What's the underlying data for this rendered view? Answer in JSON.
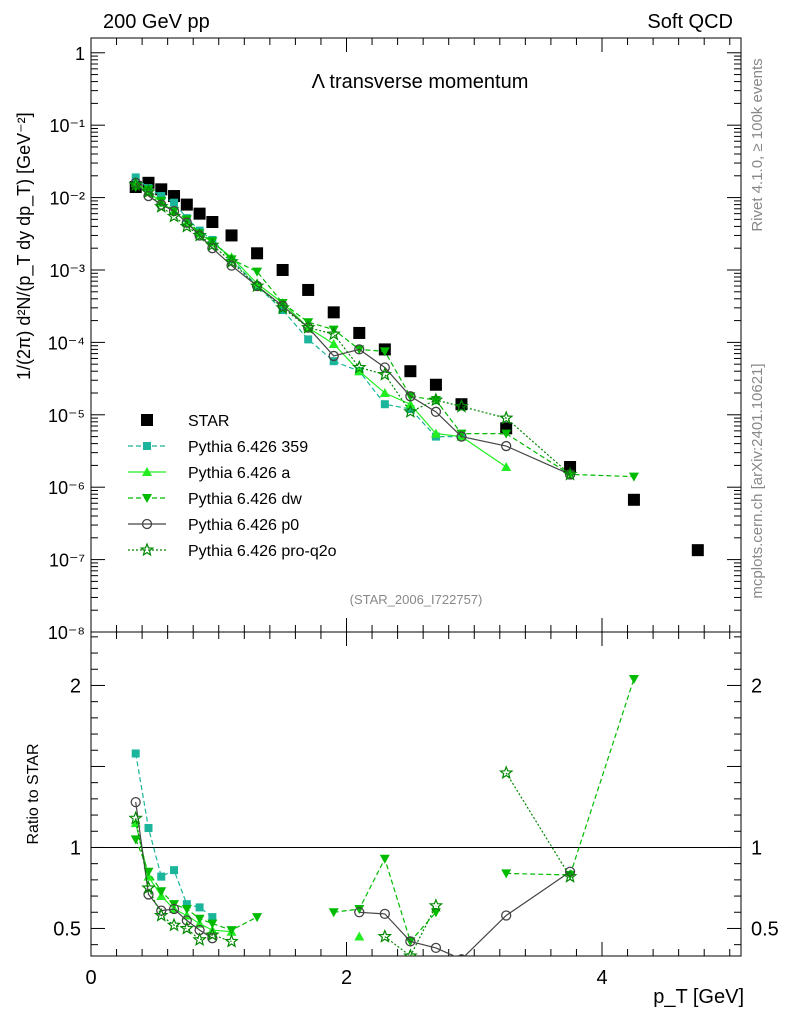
{
  "header": {
    "left": "200 GeV pp",
    "right": "Soft QCD"
  },
  "side_text": {
    "rivet": "Rivet 4.1.0, ≥ 100k events",
    "source": "mcplots.cern.ch [arXiv:2401.10621]"
  },
  "watermark": "(STAR_2006_I722757)",
  "chart_data": {
    "type": "scatter",
    "title": "Λ transverse momentum",
    "xlabel": "p_T [GeV]",
    "ylabel": "1/(2π) d²N/(p_T dy dp_T) [GeV⁻²]",
    "ratio_ylabel": "Ratio to STAR",
    "xlim": [
      0,
      5.15
    ],
    "ylim": [
      1e-08,
      1.6
    ],
    "ratio_ylim": [
      0.33,
      2.33
    ],
    "y_scale": "log",
    "x_ticks": [
      "0",
      "2",
      "4"
    ],
    "y_ticks": [
      "10⁻⁸",
      "10⁻⁷",
      "10⁻⁶",
      "10⁻⁵",
      "10⁻⁴",
      "10⁻³",
      "10⁻²",
      "10⁻¹",
      "1"
    ],
    "ratio_ticks": [
      "0.5",
      "1",
      "2"
    ],
    "legend_position": "center-left",
    "series": [
      {
        "name": "STAR",
        "color": "#000000",
        "marker": "square",
        "line": "none",
        "x": [
          0.35,
          0.45,
          0.55,
          0.65,
          0.75,
          0.85,
          0.95,
          1.1,
          1.3,
          1.5,
          1.7,
          1.9,
          2.1,
          2.3,
          2.5,
          2.7,
          2.9,
          3.25,
          3.75,
          4.25,
          4.75
        ],
        "y": [
          0.014,
          0.016,
          0.013,
          0.0105,
          0.008,
          0.006,
          0.0046,
          0.003,
          0.0017,
          0.001,
          0.00053,
          0.00026,
          0.000135,
          8e-05,
          4e-05,
          2.6e-05,
          1.4e-05,
          6.5e-06,
          1.9e-06,
          6.7e-07,
          1.35e-07
        ]
      },
      {
        "name": "Pythia 6.426 359",
        "color": "#1ab59a",
        "marker": "square-small",
        "line": "dashed",
        "x": [
          0.35,
          0.45,
          0.55,
          0.65,
          0.75,
          0.85,
          0.95,
          1.1,
          1.3,
          1.5,
          1.7,
          1.9,
          2.1,
          2.3,
          2.5,
          2.7,
          2.9
        ],
        "y": [
          0.019,
          0.0135,
          0.0105,
          0.0085,
          0.0052,
          0.0035,
          0.0026,
          0.0014,
          0.0006,
          0.00028,
          0.00011,
          5.5e-05,
          4e-05,
          1.4e-05,
          1.2e-05,
          5e-06,
          5e-06
        ],
        "ratio": [
          1.58,
          1.12,
          0.82,
          0.86,
          0.65,
          0.63,
          0.57,
          null,
          null,
          null,
          null,
          null,
          null,
          null,
          null,
          null,
          null
        ]
      },
      {
        "name": "Pythia 6.426 a",
        "color": "#22ee22",
        "marker": "triangle-up",
        "line": "solid",
        "x": [
          0.35,
          0.45,
          0.55,
          0.65,
          0.75,
          0.85,
          0.95,
          1.1,
          1.3,
          1.5,
          1.7,
          1.9,
          2.1,
          2.3,
          2.5,
          2.7,
          2.9,
          3.25
        ],
        "y": [
          0.016,
          0.012,
          0.0085,
          0.0065,
          0.0045,
          0.0032,
          0.0024,
          0.0015,
          0.00065,
          0.00035,
          0.00016,
          9.5e-05,
          4e-05,
          2e-05,
          1.4e-05,
          5.5e-06,
          5e-06,
          1.9e-06
        ],
        "ratio": [
          1.15,
          0.82,
          0.7,
          0.62,
          0.58,
          0.53,
          0.49,
          0.48,
          null,
          null,
          null,
          null,
          0.45,
          null,
          null,
          null,
          null,
          null
        ]
      },
      {
        "name": "Pythia 6.426 dw",
        "color": "#00bb00",
        "marker": "triangle-down",
        "line": "dashed",
        "x": [
          0.35,
          0.45,
          0.55,
          0.65,
          0.75,
          0.85,
          0.95,
          1.1,
          1.3,
          1.5,
          1.7,
          1.9,
          2.1,
          2.3,
          2.5,
          2.7,
          2.9,
          3.25,
          3.75,
          4.25
        ],
        "y": [
          0.014,
          0.013,
          0.009,
          0.0065,
          0.005,
          0.0032,
          0.0025,
          0.0014,
          0.00095,
          0.00035,
          0.00019,
          0.00015,
          8e-05,
          7.5e-05,
          1.8e-05,
          1.6e-05,
          5.5e-06,
          5.5e-06,
          1.5e-06,
          1.4e-06
        ],
        "ratio": [
          1.05,
          0.85,
          0.73,
          0.65,
          0.62,
          0.56,
          0.53,
          0.49,
          0.57,
          null,
          null,
          0.6,
          0.62,
          0.93,
          0.42,
          0.6,
          null,
          0.84,
          0.83,
          2.04
        ]
      },
      {
        "name": "Pythia 6.426 p0",
        "color": "#444444",
        "marker": "circle-open",
        "line": "solid",
        "x": [
          0.35,
          0.45,
          0.55,
          0.65,
          0.75,
          0.85,
          0.95,
          1.1,
          1.3,
          1.5,
          1.7,
          1.9,
          2.1,
          2.3,
          2.5,
          2.7,
          2.9,
          3.25,
          3.75
        ],
        "y": [
          0.016,
          0.0105,
          0.008,
          0.0065,
          0.0045,
          0.003,
          0.002,
          0.00115,
          0.0006,
          0.00032,
          0.00016,
          6.5e-05,
          8e-05,
          4.5e-05,
          1.8e-05,
          1.1e-05,
          5e-06,
          3.7e-06,
          1.5e-06
        ],
        "ratio": [
          1.28,
          0.71,
          0.61,
          0.62,
          0.55,
          0.49,
          0.44,
          null,
          null,
          null,
          null,
          null,
          0.6,
          0.59,
          0.42,
          0.38,
          0.31,
          0.58,
          0.85
        ]
      },
      {
        "name": "Pythia 6.426 pro-q2o",
        "color": "#008800",
        "marker": "star-open",
        "line": "dotted",
        "x": [
          0.35,
          0.45,
          0.55,
          0.65,
          0.75,
          0.85,
          0.95,
          1.1,
          1.3,
          1.5,
          1.7,
          1.9,
          2.1,
          2.3,
          2.5,
          2.7,
          2.9,
          3.25,
          3.75
        ],
        "y": [
          0.015,
          0.012,
          0.0075,
          0.0055,
          0.004,
          0.003,
          0.0022,
          0.0013,
          0.0006,
          0.0003,
          0.00016,
          0.00013,
          4.5e-05,
          3.6e-05,
          1.1e-05,
          1.6e-05,
          1.3e-05,
          9e-06,
          1.5e-06
        ],
        "ratio": [
          1.18,
          0.75,
          0.58,
          0.52,
          0.5,
          0.43,
          0.46,
          0.42,
          null,
          null,
          null,
          null,
          null,
          0.45,
          0.33,
          0.64,
          null,
          1.46,
          0.82
        ]
      }
    ]
  }
}
